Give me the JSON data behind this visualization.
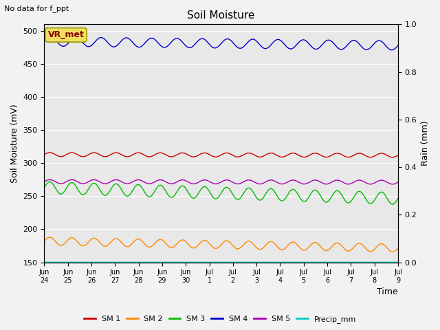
{
  "title": "Soil Moisture",
  "top_left_text": "No data for f_ppt",
  "xlabel": "Time",
  "ylabel_left": "Soil Moisture (mV)",
  "ylabel_right": "Rain (mm)",
  "annotation": "VR_met",
  "ylim_left": [
    150,
    510
  ],
  "ylim_right": [
    0.0,
    1.0
  ],
  "yticks_left": [
    150,
    200,
    250,
    300,
    350,
    400,
    450,
    500
  ],
  "yticks_right": [
    0.0,
    0.2,
    0.4,
    0.6,
    0.8,
    1.0
  ],
  "xtick_labels": [
    "Jun\n24",
    "Jun\n25",
    "Jun\n26",
    "Jun\n27",
    "Jun\n28",
    "Jun\n29",
    "Jun\n30",
    "Jul\n1",
    "Jul\n2",
    "Jul\n3",
    "Jul\n4",
    "Jul\n5",
    "Jul\n6",
    "Jul\n7",
    "Jul\n8",
    "Jul\n9"
  ],
  "num_points": 1500,
  "background_color": "#e8e8e8",
  "grid_color": "#ffffff",
  "series": {
    "SM1": {
      "color": "#cc0000",
      "base": 313,
      "amplitude": 3,
      "trend": -0.0008,
      "freq": 16
    },
    "SM2": {
      "color": "#ff8800",
      "base": 182,
      "amplitude": 6,
      "trend": -0.007,
      "freq": 16
    },
    "SM3": {
      "color": "#00bb00",
      "base": 263,
      "amplitude": 9,
      "trend": -0.011,
      "freq": 16
    },
    "SM4": {
      "color": "#0000cc",
      "base": 484,
      "amplitude": 7,
      "trend": -0.004,
      "freq": 14
    },
    "SM5": {
      "color": "#aa00aa",
      "base": 272,
      "amplitude": 3,
      "trend": -0.0006,
      "freq": 16
    },
    "Precip_mm": {
      "color": "#00cccc",
      "base": 150.2,
      "amplitude": 0,
      "trend": 0,
      "freq": 0
    }
  },
  "legend": [
    {
      "label": "SM 1",
      "color": "#cc0000"
    },
    {
      "label": "SM 2",
      "color": "#ff8800"
    },
    {
      "label": "SM 3",
      "color": "#00bb00"
    },
    {
      "label": "SM 4",
      "color": "#0000cc"
    },
    {
      "label": "SM 5",
      "color": "#aa00aa"
    },
    {
      "label": "Precip_mm",
      "color": "#00cccc"
    }
  ],
  "fig_width": 6.4,
  "fig_height": 4.8,
  "dpi": 100
}
